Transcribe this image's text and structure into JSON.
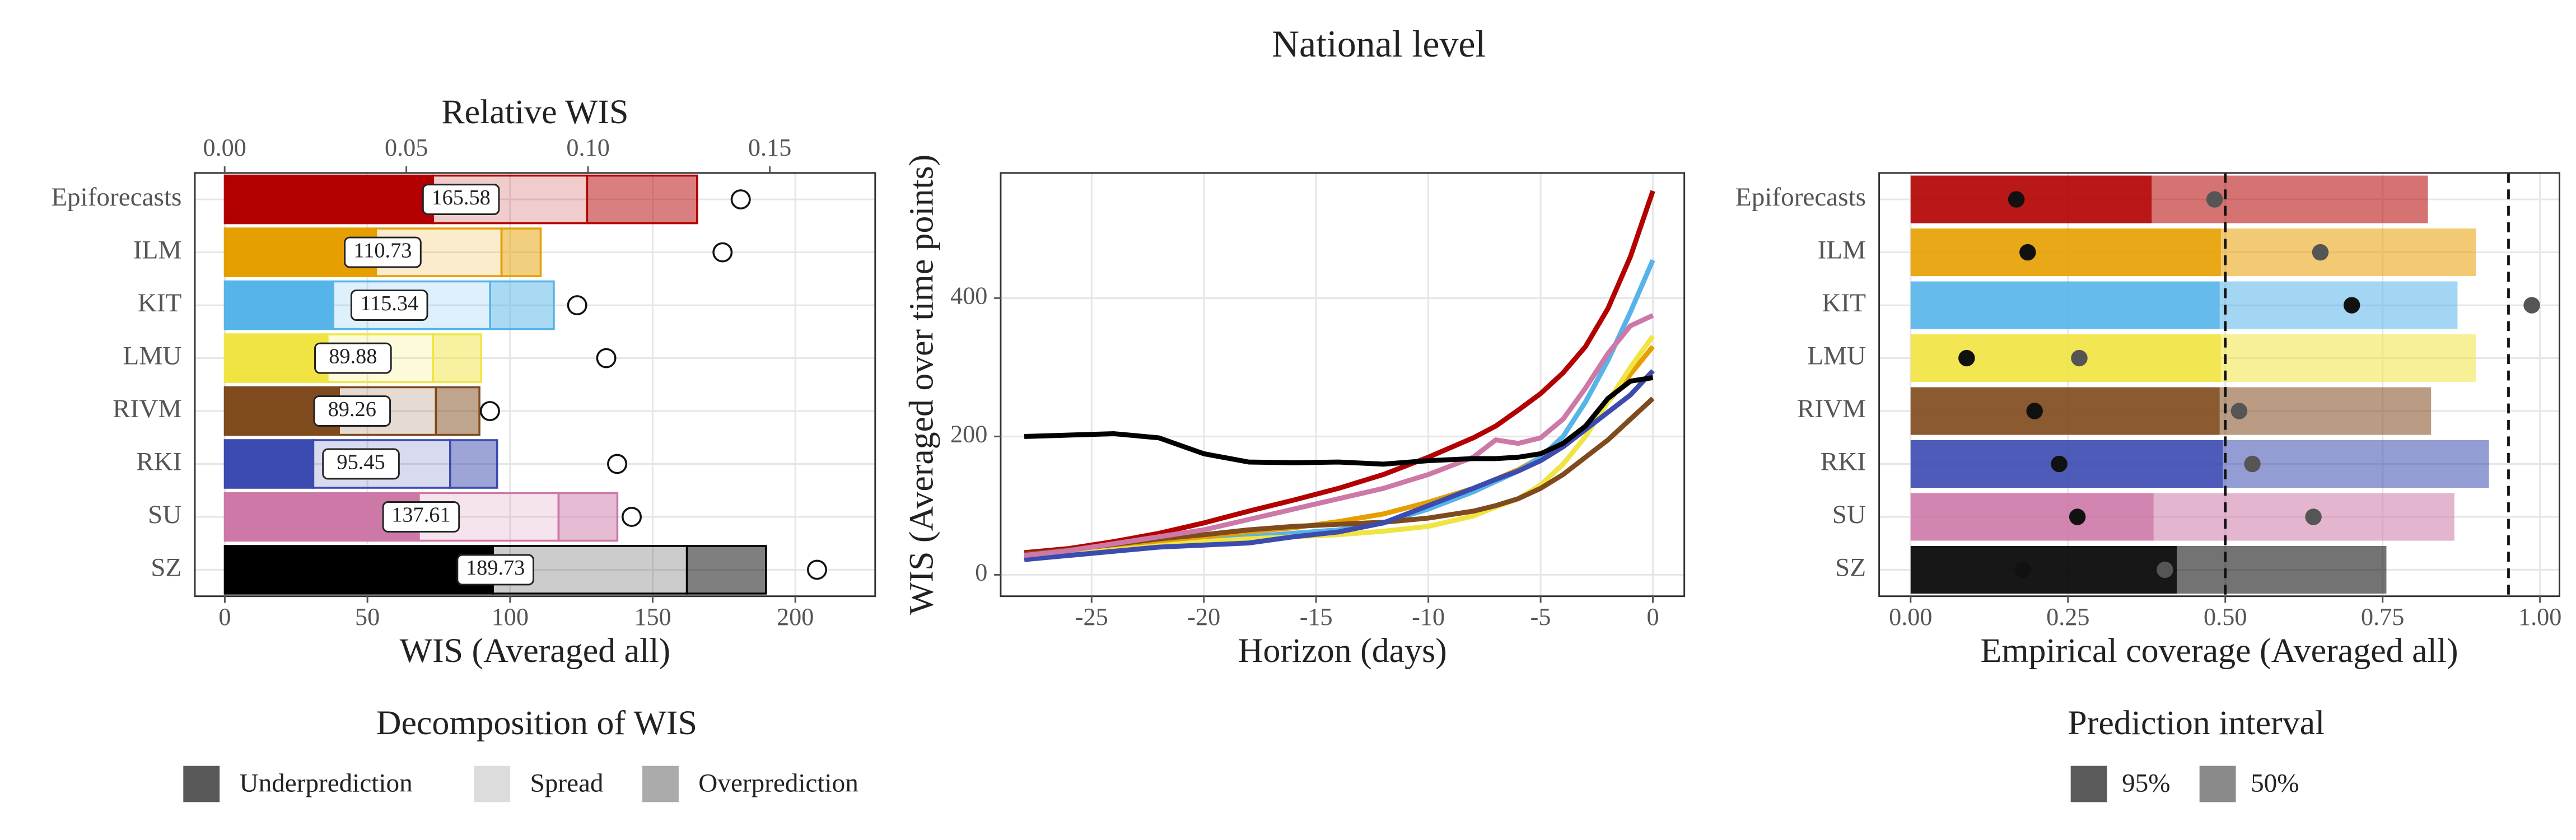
{
  "title": "National level",
  "chart_data": [
    {
      "type": "stacked-barh",
      "categories": [
        "Epiforecasts",
        "ILM",
        "KIT",
        "LMU",
        "RIVM",
        "RKI",
        "SU",
        "SZ"
      ],
      "colors": [
        "#b30000",
        "#e69f00",
        "#56b4e9",
        "#f0e442",
        "#7f4a1d",
        "#3c4bb0",
        "#cc79a7",
        "#000000"
      ],
      "series": [
        {
          "name": "Underprediction",
          "legend_color": "#595959",
          "opacity": 1,
          "values": [
            73,
            53,
            38,
            36,
            40,
            31,
            68,
            94
          ]
        },
        {
          "name": "Spread",
          "legend_color": "#dcdcdc",
          "opacity": 0.2,
          "values": [
            54,
            44,
            55,
            37,
            34,
            48,
            49,
            68
          ]
        },
        {
          "name": "Overprediction",
          "legend_color": "#ababab",
          "opacity": 0.5,
          "values": [
            38.58,
            13.73,
            22.34,
            16.88,
            15.26,
            16.45,
            20.61,
            27.73
          ]
        }
      ],
      "totals": [
        165.58,
        110.73,
        115.34,
        89.88,
        89.26,
        95.45,
        137.61,
        189.73
      ],
      "xlabel": "WIS (Averaged all)",
      "xlim": [
        -10.5,
        228
      ],
      "xticks": [
        0,
        50,
        100,
        150,
        200
      ],
      "relative_wis": {
        "label": "Relative WIS",
        "values": [
          0.142,
          0.137,
          0.097,
          0.105,
          0.073,
          0.108,
          0.112,
          0.163
        ],
        "xlim": [
          -0.0082,
          0.179
        ],
        "xticks": [
          {
            "value": 0,
            "label": "0.00"
          },
          {
            "value": 0.05,
            "label": "0.05"
          },
          {
            "value": 0.1,
            "label": "0.10"
          },
          {
            "value": 0.15,
            "label": "0.15"
          }
        ]
      },
      "legend_title": "Decomposition of WIS",
      "grid": true
    },
    {
      "type": "line",
      "x": [
        -28,
        -26,
        -24,
        -22,
        -20,
        -18,
        -16,
        -14,
        -12,
        -10,
        -8,
        -7,
        -6,
        -5,
        -4,
        -3,
        -2,
        -1,
        0
      ],
      "series": [
        {
          "name": "Epiforecasts",
          "color": "#b30000",
          "values": [
            32,
            38,
            48,
            60,
            75,
            92,
            108,
            125,
            145,
            170,
            198,
            215,
            238,
            262,
            292,
            330,
            385,
            460,
            555
          ]
        },
        {
          "name": "ILM",
          "color": "#e69f00",
          "values": [
            30,
            34,
            40,
            48,
            55,
            62,
            68,
            77,
            88,
            105,
            125,
            138,
            152,
            170,
            190,
            215,
            250,
            290,
            330
          ]
        },
        {
          "name": "KIT",
          "color": "#56b4e9",
          "values": [
            25,
            30,
            36,
            42,
            48,
            55,
            60,
            65,
            75,
            95,
            120,
            135,
            150,
            170,
            200,
            250,
            310,
            380,
            455
          ]
        },
        {
          "name": "LMU",
          "color": "#f0e442",
          "values": [
            25,
            30,
            36,
            42,
            48,
            52,
            55,
            58,
            63,
            70,
            85,
            98,
            110,
            130,
            160,
            200,
            250,
            300,
            345
          ]
        },
        {
          "name": "RIVM",
          "color": "#7f4a1d",
          "values": [
            30,
            36,
            44,
            52,
            58,
            65,
            70,
            73,
            76,
            82,
            92,
            100,
            110,
            125,
            145,
            170,
            195,
            225,
            255
          ]
        },
        {
          "name": "RKI",
          "color": "#3c4bb0",
          "values": [
            22,
            28,
            34,
            40,
            43,
            46,
            55,
            62,
            75,
            100,
            125,
            138,
            150,
            165,
            185,
            210,
            235,
            260,
            295
          ]
        },
        {
          "name": "SU",
          "color": "#cc79a7",
          "values": [
            28,
            35,
            45,
            55,
            65,
            80,
            95,
            110,
            125,
            145,
            170,
            195,
            190,
            198,
            225,
            270,
            320,
            360,
            375
          ]
        },
        {
          "name": "SZ",
          "color": "#000000",
          "values": [
            200,
            202,
            204,
            198,
            175,
            163,
            162,
            163,
            160,
            165,
            168,
            168,
            170,
            175,
            190,
            215,
            255,
            280,
            285
          ]
        }
      ],
      "xlabel": "Horizon (days)",
      "ylabel": "WIS (Averaged over time points)",
      "xlim": [
        -29.05,
        1.4
      ],
      "xticks": [
        -25,
        -20,
        -15,
        -10,
        -5,
        0
      ],
      "ylim": [
        -31,
        581
      ],
      "yticks": [
        0,
        200,
        400
      ],
      "grid": true
    },
    {
      "type": "coverage-barh",
      "categories": [
        "Epiforecasts",
        "ILM",
        "KIT",
        "LMU",
        "RIVM",
        "RKI",
        "SU",
        "SZ"
      ],
      "colors": [
        "#b30000",
        "#e69f00",
        "#56b4e9",
        "#f0e442",
        "#7f4a1d",
        "#3c4bb0",
        "#cc79a7",
        "#000000"
      ],
      "series": [
        {
          "name": "95%",
          "legend_color": "#5a5a5a",
          "opacity": 0.55,
          "point_color": "#555555",
          "values": [
            0.822,
            0.898,
            0.869,
            0.898,
            0.827,
            0.919,
            0.864,
            0.756
          ],
          "points": [
            0.483,
            0.651,
            0.987,
            0.268,
            0.522,
            0.543,
            0.64,
            0.404
          ]
        },
        {
          "name": "50%",
          "legend_color": "#8a8a8a",
          "opacity": 0.8,
          "point_color": "#111111",
          "values": [
            0.383,
            0.493,
            0.491,
            0.493,
            0.491,
            0.496,
            0.386,
            0.423
          ],
          "points": [
            0.168,
            0.186,
            0.701,
            0.089,
            0.197,
            0.236,
            0.265,
            0.178
          ]
        }
      ],
      "reference_lines": [
        0.5,
        0.95
      ],
      "xlabel": "Empirical coverage (Averaged all)",
      "xlim": [
        -0.05,
        1.031
      ],
      "xticks": [
        {
          "value": 0,
          "label": "0.00"
        },
        {
          "value": 0.25,
          "label": "0.25"
        },
        {
          "value": 0.5,
          "label": "0.50"
        },
        {
          "value": 0.75,
          "label": "0.75"
        },
        {
          "value": 1,
          "label": "1.00"
        }
      ],
      "legend_title": "Prediction interval",
      "grid": true
    }
  ]
}
